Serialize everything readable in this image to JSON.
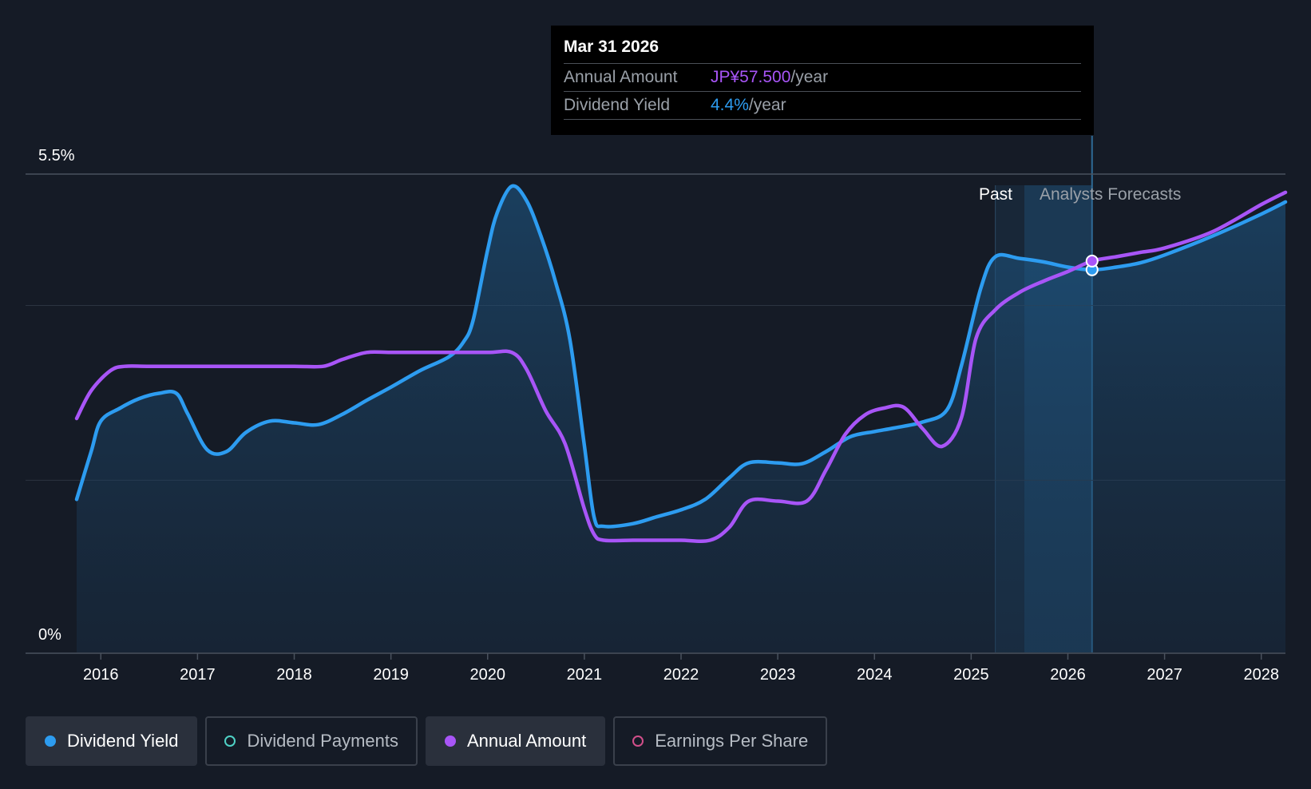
{
  "chart_data": {
    "type": "line",
    "x_domain": [
      2015.75,
      2028.25
    ],
    "y_domain": [
      0,
      5.5
    ],
    "y_ticks": [
      {
        "label": "5.5%",
        "value": 5.5
      },
      {
        "label": "0%",
        "value": 0
      }
    ],
    "x_ticks": [
      "2016",
      "2017",
      "2018",
      "2019",
      "2020",
      "2021",
      "2022",
      "2023",
      "2024",
      "2025",
      "2026",
      "2027",
      "2028"
    ],
    "x_tick_values": [
      2016,
      2017,
      2018,
      2019,
      2020,
      2021,
      2022,
      2023,
      2024,
      2025,
      2026,
      2027,
      2028
    ],
    "gridlines": [
      5.5,
      3.99,
      1.98
    ],
    "past_label": "Past",
    "forecast_label": "Analysts Forecasts",
    "past_region": [
      2025.25,
      2025.55
    ],
    "forecast_region": [
      2025.55,
      2026.25
    ],
    "cursor_x": 2026.25,
    "colors": {
      "dividend_yield": "#2d9cf0",
      "annual_amount": "#a855f7",
      "dividend_payments": "#4fd1c5",
      "earnings_per_share": "#d14f8a"
    },
    "series": [
      {
        "name": "Dividend Yield",
        "points": [
          [
            2015.75,
            1.76
          ],
          [
            2015.9,
            2.31
          ],
          [
            2016.0,
            2.66
          ],
          [
            2016.2,
            2.81
          ],
          [
            2016.4,
            2.92
          ],
          [
            2016.6,
            2.98
          ],
          [
            2016.78,
            2.98
          ],
          [
            2016.9,
            2.74
          ],
          [
            2017.1,
            2.33
          ],
          [
            2017.3,
            2.31
          ],
          [
            2017.5,
            2.53
          ],
          [
            2017.75,
            2.66
          ],
          [
            2018.0,
            2.64
          ],
          [
            2018.25,
            2.62
          ],
          [
            2018.5,
            2.74
          ],
          [
            2018.75,
            2.9
          ],
          [
            2019.0,
            3.05
          ],
          [
            2019.3,
            3.24
          ],
          [
            2019.6,
            3.4
          ],
          [
            2019.75,
            3.57
          ],
          [
            2019.85,
            3.82
          ],
          [
            2020.0,
            4.63
          ],
          [
            2020.1,
            5.06
          ],
          [
            2020.25,
            5.36
          ],
          [
            2020.4,
            5.2
          ],
          [
            2020.55,
            4.79
          ],
          [
            2020.7,
            4.27
          ],
          [
            2020.85,
            3.6
          ],
          [
            2021.0,
            2.38
          ],
          [
            2021.1,
            1.56
          ],
          [
            2021.2,
            1.45
          ],
          [
            2021.5,
            1.48
          ],
          [
            2021.75,
            1.56
          ],
          [
            2022.0,
            1.64
          ],
          [
            2022.25,
            1.76
          ],
          [
            2022.5,
            2.01
          ],
          [
            2022.7,
            2.18
          ],
          [
            2023.0,
            2.18
          ],
          [
            2023.25,
            2.17
          ],
          [
            2023.5,
            2.31
          ],
          [
            2023.75,
            2.48
          ],
          [
            2024.0,
            2.54
          ],
          [
            2024.2,
            2.58
          ],
          [
            2024.5,
            2.65
          ],
          [
            2024.75,
            2.79
          ],
          [
            2024.9,
            3.3
          ],
          [
            2025.1,
            4.19
          ],
          [
            2025.25,
            4.55
          ],
          [
            2025.5,
            4.53
          ],
          [
            2025.75,
            4.49
          ],
          [
            2026.0,
            4.43
          ],
          [
            2026.25,
            4.4
          ],
          [
            2026.5,
            4.43
          ],
          [
            2026.75,
            4.48
          ],
          [
            2027.0,
            4.57
          ],
          [
            2027.5,
            4.79
          ],
          [
            2028.0,
            5.04
          ],
          [
            2028.25,
            5.18
          ]
        ]
      },
      {
        "name": "Annual Amount",
        "points": [
          [
            2015.75,
            2.69
          ],
          [
            2015.9,
            3.01
          ],
          [
            2016.1,
            3.24
          ],
          [
            2016.25,
            3.29
          ],
          [
            2016.5,
            3.29
          ],
          [
            2017.0,
            3.29
          ],
          [
            2017.5,
            3.29
          ],
          [
            2018.0,
            3.29
          ],
          [
            2018.3,
            3.29
          ],
          [
            2018.5,
            3.37
          ],
          [
            2018.75,
            3.45
          ],
          [
            2019.0,
            3.45
          ],
          [
            2019.5,
            3.45
          ],
          [
            2020.0,
            3.45
          ],
          [
            2020.25,
            3.45
          ],
          [
            2020.4,
            3.26
          ],
          [
            2020.6,
            2.78
          ],
          [
            2020.8,
            2.4
          ],
          [
            2021.0,
            1.65
          ],
          [
            2021.1,
            1.36
          ],
          [
            2021.2,
            1.29
          ],
          [
            2021.5,
            1.29
          ],
          [
            2021.75,
            1.29
          ],
          [
            2022.0,
            1.29
          ],
          [
            2022.3,
            1.29
          ],
          [
            2022.5,
            1.44
          ],
          [
            2022.7,
            1.74
          ],
          [
            2023.0,
            1.74
          ],
          [
            2023.3,
            1.74
          ],
          [
            2023.5,
            2.1
          ],
          [
            2023.7,
            2.51
          ],
          [
            2023.9,
            2.73
          ],
          [
            2024.1,
            2.81
          ],
          [
            2024.3,
            2.82
          ],
          [
            2024.5,
            2.57
          ],
          [
            2024.7,
            2.37
          ],
          [
            2024.9,
            2.7
          ],
          [
            2025.05,
            3.61
          ],
          [
            2025.25,
            3.94
          ],
          [
            2025.5,
            4.14
          ],
          [
            2025.75,
            4.27
          ],
          [
            2026.0,
            4.38
          ],
          [
            2026.25,
            4.5
          ],
          [
            2026.5,
            4.55
          ],
          [
            2026.75,
            4.6
          ],
          [
            2027.0,
            4.65
          ],
          [
            2027.5,
            4.84
          ],
          [
            2028.0,
            5.15
          ],
          [
            2028.25,
            5.29
          ]
        ]
      }
    ]
  },
  "tooltip": {
    "date": "Mar 31 2026",
    "rows": [
      {
        "label": "Annual Amount",
        "value": "JP¥57.500",
        "unit": "/year"
      },
      {
        "label": "Dividend Yield",
        "value": "4.4%",
        "unit": "/year"
      }
    ]
  },
  "legend": [
    {
      "label": "Dividend Yield",
      "color": "#2d9cf0",
      "active": true,
      "filled": true
    },
    {
      "label": "Dividend Payments",
      "color": "#4fd1c5",
      "active": false,
      "filled": false
    },
    {
      "label": "Annual Amount",
      "color": "#a855f7",
      "active": true,
      "filled": true
    },
    {
      "label": "Earnings Per Share",
      "color": "#d14f8a",
      "active": false,
      "filled": false
    }
  ]
}
